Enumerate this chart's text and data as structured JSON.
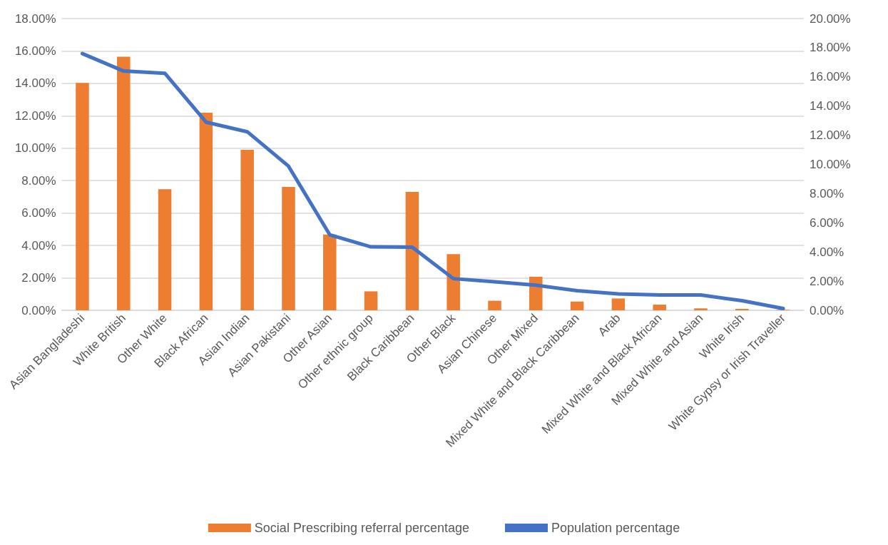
{
  "chart_data": {
    "type": "bar",
    "categories": [
      "Asian Bangladeshi",
      "White British",
      "Other White",
      "Black African",
      "Asian Indian",
      "Asian Pakistani",
      "Other Asian",
      "Other ethnic group",
      "Black Caribbean",
      "Other Black",
      "Asian Chinese",
      "Other Mixed",
      "Mixed White and Black Caribbean",
      "Arab",
      "Mixed White and Black African",
      "Mixed White and Asian",
      "White Irish",
      "White Gypsy or Irish Traveller"
    ],
    "series": [
      {
        "name": "Social Prescribing referral percentage",
        "color": "#ed7d31",
        "values": [
          14.03,
          15.65,
          7.47,
          12.19,
          9.9,
          7.61,
          4.68,
          1.17,
          7.31,
          3.47,
          0.59,
          2.07,
          0.54,
          0.73,
          0.35,
          0.12,
          0.09,
          0.03
        ]
      },
      {
        "name": "Population percentage",
        "type": "line",
        "axis": "y2",
        "color": "#4472c4",
        "values": [
          17.6,
          16.4,
          16.25,
          12.9,
          12.24,
          9.88,
          5.18,
          4.35,
          4.33,
          2.17,
          1.96,
          1.72,
          1.34,
          1.12,
          1.05,
          1.05,
          0.66,
          0.12
        ]
      }
    ],
    "ylim": [
      0,
      18
    ],
    "yticks": [
      {
        "value": 0,
        "label": "0.00%"
      },
      {
        "value": 2,
        "label": "2.00%"
      },
      {
        "value": 4,
        "label": "4.00%"
      },
      {
        "value": 6,
        "label": "6.00%"
      },
      {
        "value": 8,
        "label": "8.00%"
      },
      {
        "value": 10,
        "label": "10.00%"
      },
      {
        "value": 12,
        "label": "12.00%"
      },
      {
        "value": 14,
        "label": "14.00%"
      },
      {
        "value": 16,
        "label": "16.00%"
      },
      {
        "value": 18,
        "label": "18.00%"
      }
    ],
    "y2lim": [
      0,
      20
    ],
    "y2ticks": [
      {
        "value": 0,
        "label": "0.00%"
      },
      {
        "value": 2,
        "label": "2.00%"
      },
      {
        "value": 4,
        "label": "4.00%"
      },
      {
        "value": 6,
        "label": "6.00%"
      },
      {
        "value": 8,
        "label": "8.00%"
      },
      {
        "value": 10,
        "label": "10.00%"
      },
      {
        "value": 12,
        "label": "12.00%"
      },
      {
        "value": 14,
        "label": "14.00%"
      },
      {
        "value": 16,
        "label": "16.00%"
      },
      {
        "value": 18,
        "label": "18.00%"
      },
      {
        "value": 20,
        "label": "20.00%"
      }
    ],
    "grid": "y",
    "legend": "bottom",
    "marker": "none"
  }
}
